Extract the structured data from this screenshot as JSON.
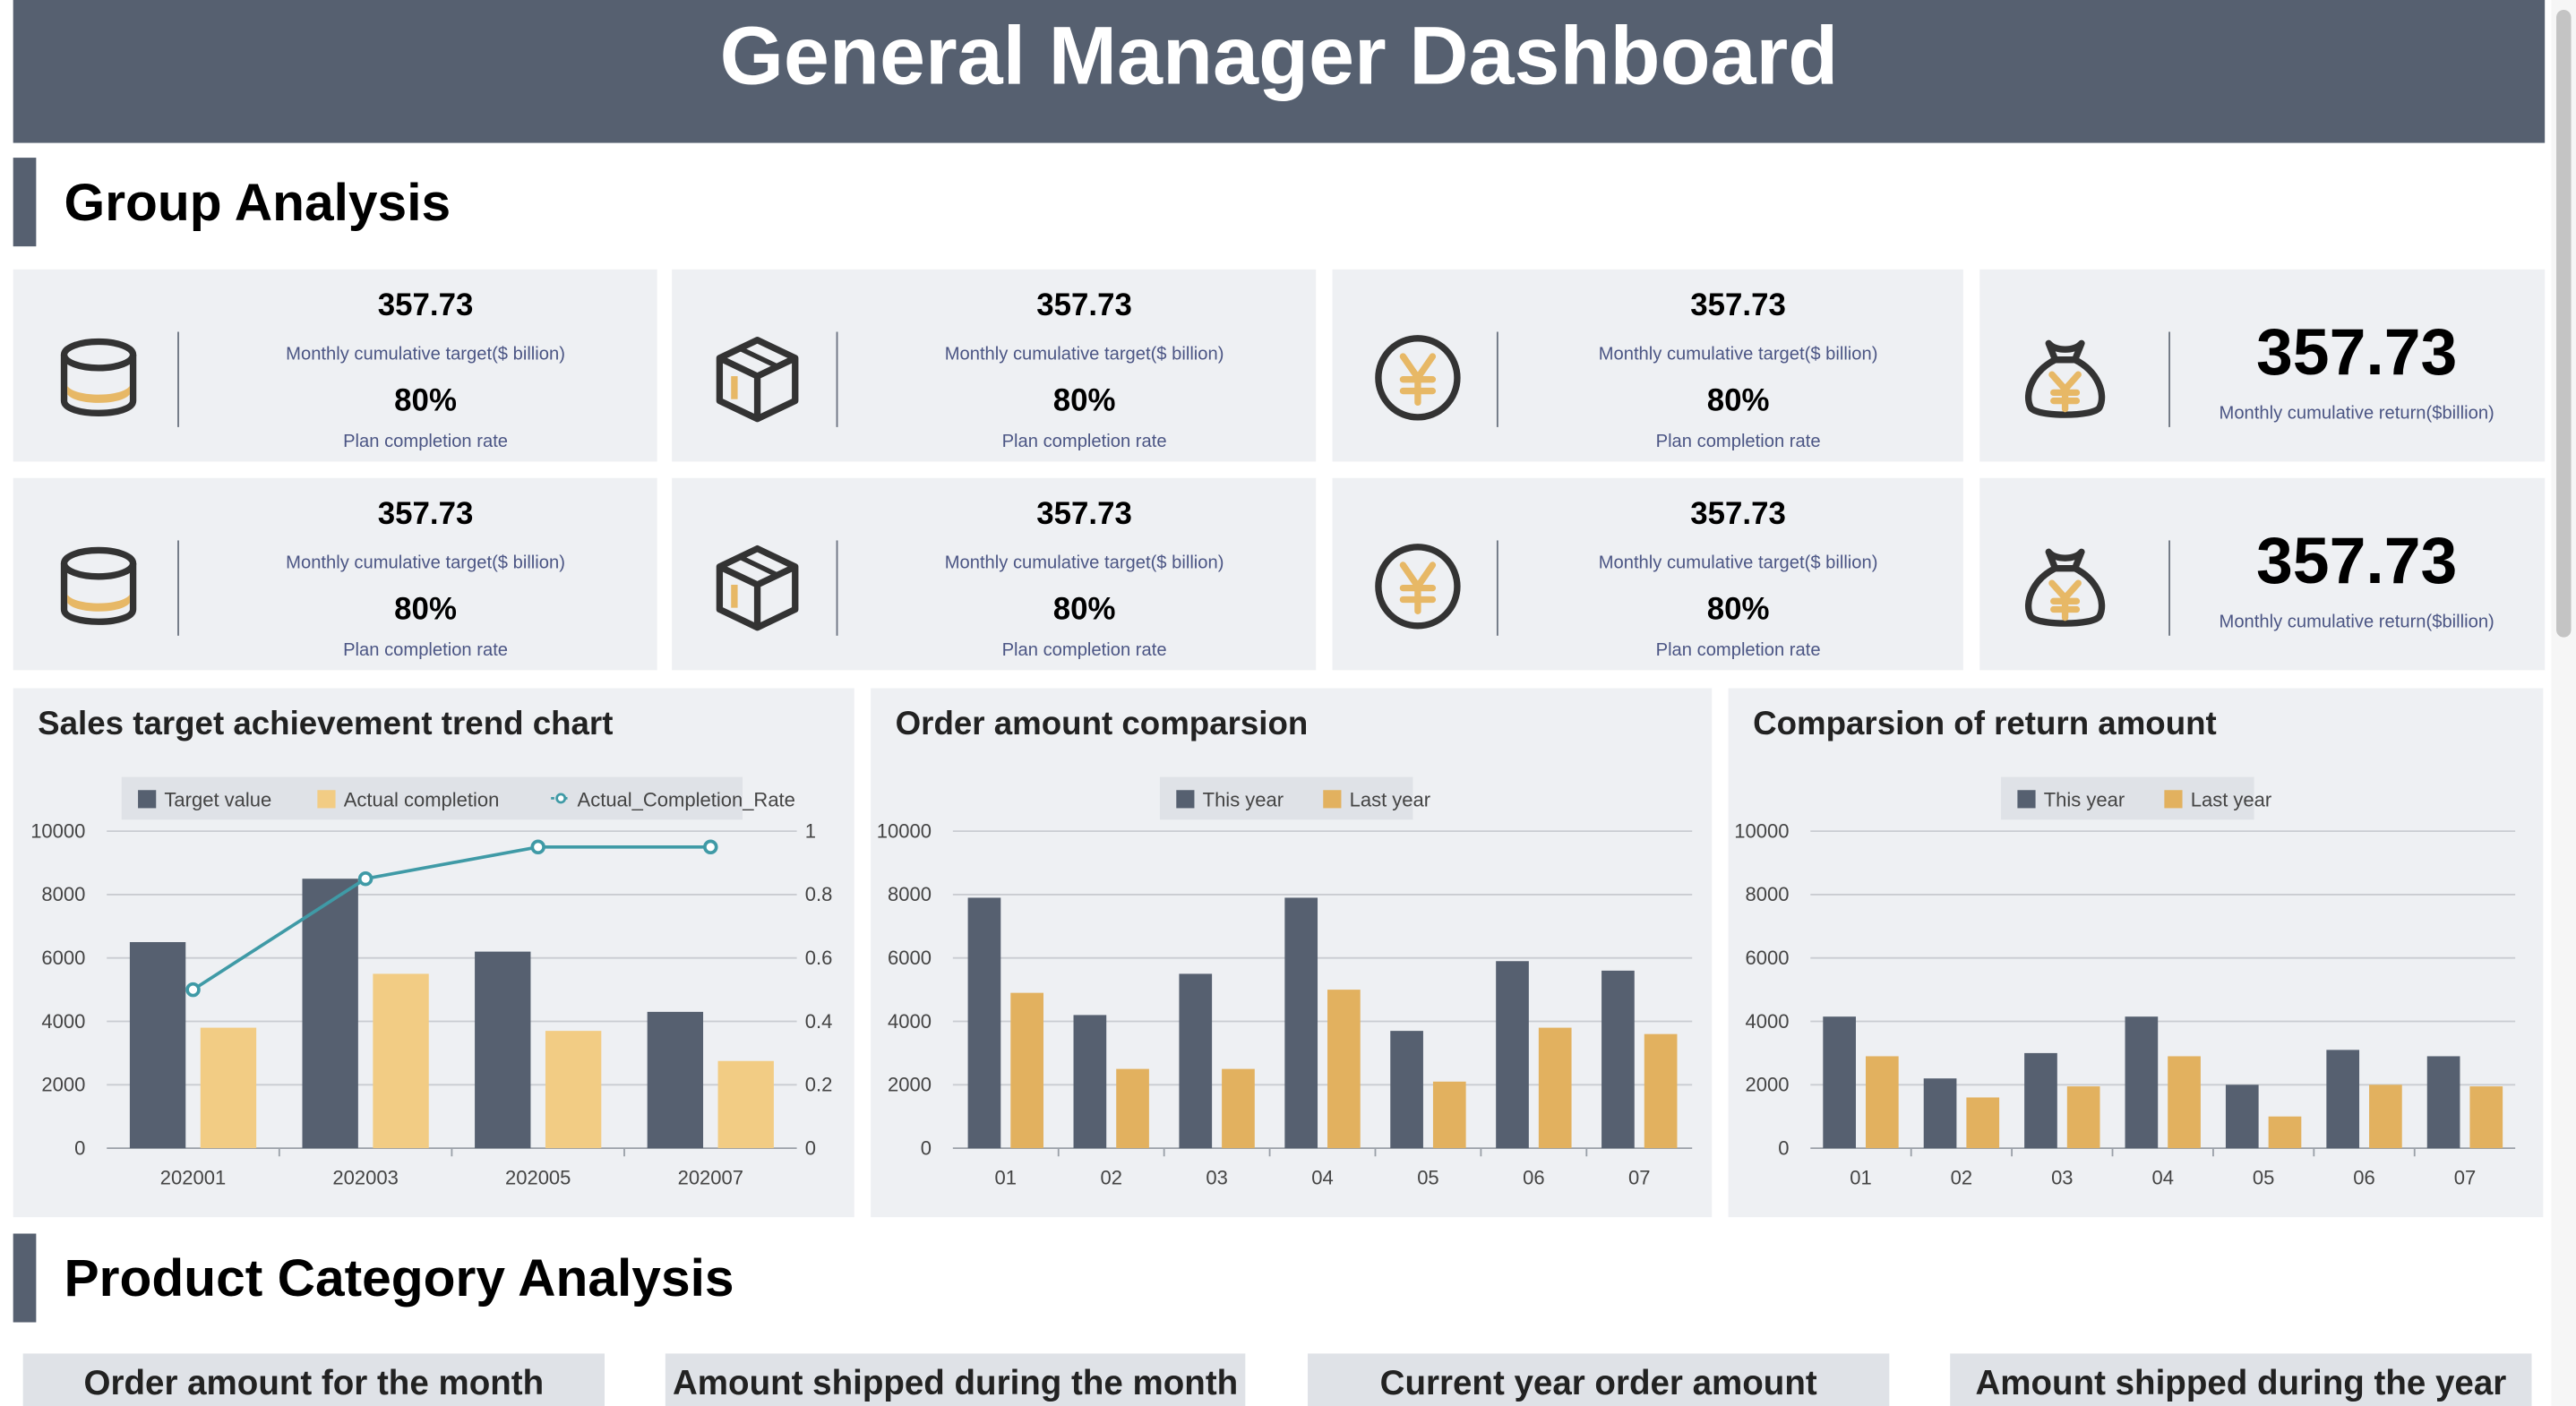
{
  "header": {
    "title": "General Manager Dashboard"
  },
  "sections": {
    "group": "Group Analysis",
    "product": "Product Category Analysis"
  },
  "kpi_cards": [
    {
      "icon": "database-icon",
      "value": "357.73",
      "label": "Monthly cumulative target($ billion)",
      "rate": "80%",
      "rate_label": "Plan completion rate"
    },
    {
      "icon": "box-icon",
      "value": "357.73",
      "label": "Monthly cumulative target($ billion)",
      "rate": "80%",
      "rate_label": "Plan completion rate"
    },
    {
      "icon": "yen-coin-icon",
      "value": "357.73",
      "label": "Monthly cumulative target($ billion)",
      "rate": "80%",
      "rate_label": "Plan completion rate"
    },
    {
      "icon": "money-bag-icon",
      "value": "357.73",
      "label": "Monthly cumulative return($billion)"
    },
    {
      "icon": "database-icon",
      "value": "357.73",
      "label": "Monthly cumulative target($ billion)",
      "rate": "80%",
      "rate_label": "Plan completion rate"
    },
    {
      "icon": "box-icon",
      "value": "357.73",
      "label": "Monthly cumulative target($ billion)",
      "rate": "80%",
      "rate_label": "Plan completion rate"
    },
    {
      "icon": "yen-coin-icon",
      "value": "357.73",
      "label": "Monthly cumulative target($ billion)",
      "rate": "80%",
      "rate_label": "Plan completion rate"
    },
    {
      "icon": "money-bag-icon",
      "value": "357.73",
      "label": "Monthly cumulative return($billion)"
    }
  ],
  "colors": {
    "header": "#566070",
    "dark_bar": "#566070",
    "gold_bar": "#e2b15f",
    "light_gold_bar": "#f2cc84",
    "rate_line": "#3f9aa6"
  },
  "chart_data": [
    {
      "type": "bar",
      "title": "Sales target achievement trend chart",
      "categories": [
        "202001",
        "202003",
        "202005",
        "202007"
      ],
      "series": [
        {
          "name": "Target value",
          "values": [
            6500,
            8500,
            6200,
            4300
          ],
          "color": "#566070"
        },
        {
          "name": "Actual completion",
          "values": [
            3800,
            5500,
            3700,
            2750
          ],
          "color": "#f2cc84"
        },
        {
          "name": "Actual_Completion_Rate",
          "type": "line",
          "axis": "right",
          "values": [
            0.5,
            0.85,
            0.95,
            0.95
          ],
          "color": "#3f9aa6"
        }
      ],
      "ylim": [
        0,
        10000
      ],
      "y_ticks": [
        "0",
        "2000",
        "4000",
        "6000",
        "8000",
        "10000"
      ],
      "y2lim": [
        0,
        1
      ],
      "y2_ticks": [
        "0",
        "0.2",
        "0.4",
        "0.6",
        "0.8",
        "1"
      ],
      "grid": true,
      "legend": "top"
    },
    {
      "type": "bar",
      "title": "Order amount comparsion",
      "categories": [
        "01",
        "02",
        "03",
        "04",
        "05",
        "06",
        "07"
      ],
      "series": [
        {
          "name": "This year",
          "values": [
            7900,
            4200,
            5500,
            7900,
            3700,
            5900,
            5600
          ],
          "color": "#566070"
        },
        {
          "name": "Last year",
          "values": [
            4900,
            2500,
            2500,
            5000,
            2100,
            3800,
            3600
          ],
          "color": "#e2b15f"
        }
      ],
      "ylim": [
        0,
        10000
      ],
      "y_ticks": [
        "0",
        "2000",
        "4000",
        "6000",
        "8000",
        "10000"
      ],
      "grid": true,
      "legend": "top"
    },
    {
      "type": "bar",
      "title": "Comparsion of return amount",
      "categories": [
        "01",
        "02",
        "03",
        "04",
        "05",
        "06",
        "07"
      ],
      "series": [
        {
          "name": "This year",
          "values": [
            4150,
            2200,
            3000,
            4150,
            2000,
            3100,
            2900
          ],
          "color": "#566070"
        },
        {
          "name": "Last year",
          "values": [
            2900,
            1600,
            1950,
            2900,
            1000,
            2000,
            1950
          ],
          "color": "#e2b15f"
        }
      ],
      "ylim": [
        0,
        10000
      ],
      "y_ticks": [
        "0",
        "2000",
        "4000",
        "6000",
        "8000",
        "10000"
      ],
      "grid": true,
      "legend": "top"
    }
  ],
  "product_tabs": [
    "Order amount for the month",
    "Amount shipped during the month",
    "Current year order amount",
    "Amount shipped during the year"
  ]
}
